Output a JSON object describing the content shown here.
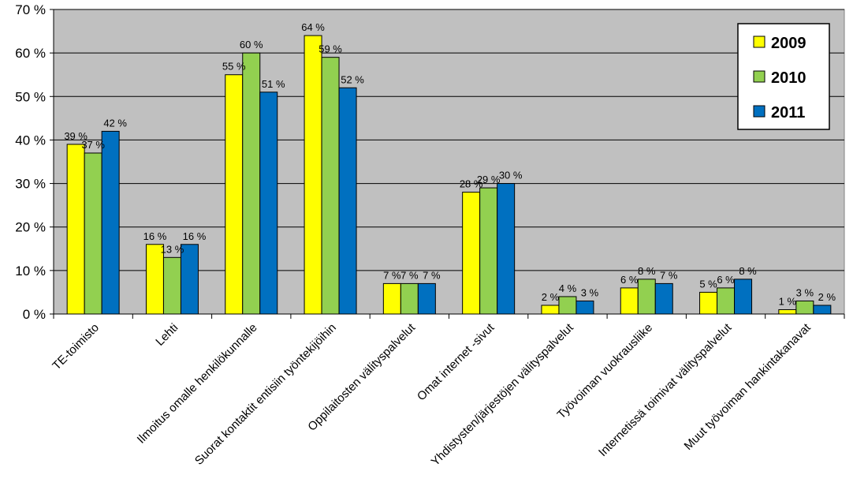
{
  "chart_data": {
    "type": "bar",
    "categories": [
      "TE-toimisto",
      "Lehti",
      "Ilmoitus omalle henkilökunnalle",
      "Suorat kontaktit entisiin työntekijöihin",
      "Oppilaitosten välityspalvelut",
      "Omat internet -sivut",
      "Yhdistysten/järjestöjen välityspalvelut",
      "Työvoiman vuokrausliike",
      "Internetissä toimivat välityspalvelut",
      "Muut työvoiman hankintakanavat"
    ],
    "series": [
      {
        "name": "2009",
        "color": "#FFFF00",
        "values": [
          39,
          16,
          55,
          64,
          7,
          28,
          2,
          6,
          5,
          1
        ],
        "labels": [
          "39 %",
          "16 %",
          "55 %",
          "64 %",
          "7 %",
          "28 %",
          "2 %",
          "6 %",
          "5 %",
          "1 %"
        ]
      },
      {
        "name": "2010",
        "color": "#92D050",
        "values": [
          37,
          13,
          60,
          59,
          7,
          29,
          4,
          8,
          6,
          3
        ],
        "labels": [
          "37 %",
          "13 %",
          "60 %",
          "59 %",
          "7 %",
          "29 %",
          "4 %",
          "8 %",
          "6 %",
          "3 %"
        ]
      },
      {
        "name": "2011",
        "color": "#0070C0",
        "values": [
          42,
          16,
          51,
          52,
          7,
          30,
          3,
          7,
          8,
          2
        ],
        "labels": [
          "42 %",
          "16 %",
          "51 %",
          "52 %",
          "7 %",
          "30 %",
          "3 %",
          "7 %",
          "8 %",
          "2 %"
        ]
      }
    ],
    "ylim": [
      0,
      70
    ],
    "yticks": [
      0,
      10,
      20,
      30,
      40,
      50,
      60,
      70
    ],
    "ytick_labels": [
      "0 %",
      "10 %",
      "20 %",
      "30 %",
      "40 %",
      "50 %",
      "60 %",
      "70 %"
    ],
    "title": "",
    "xlabel": "",
    "ylabel": "",
    "grid": true,
    "plot_background": "#C0C0C0",
    "legend": {
      "position": "top-right",
      "entries": [
        "2009",
        "2010",
        "2011"
      ]
    }
  }
}
